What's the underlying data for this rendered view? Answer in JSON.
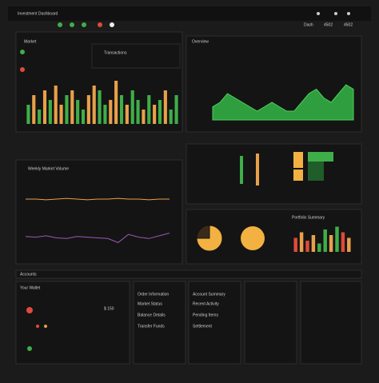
{
  "header": {
    "title": "Investment Dashboard",
    "tabs": [
      "Dash",
      "4502",
      "4502"
    ]
  },
  "panels": {
    "market": "Market",
    "transactions": "Transactions",
    "volume": "Weekly Market Volume",
    "overview": "Overview",
    "portfolio": "Portfolio Summary",
    "accounts": "Accounts",
    "wallet": "Your Wallet",
    "balance": "$ 150",
    "orders": [
      "Order Information",
      "Market Status",
      "Balance Details",
      "Transfer Funds"
    ],
    "activity": [
      "Account Summary",
      "Recent Activity",
      "Pending Items",
      "Settlement"
    ]
  },
  "chart_data": [
    {
      "type": "bar",
      "ylim": [
        0,
        10
      ],
      "values": [
        4,
        6,
        3,
        7,
        5,
        8,
        4,
        6,
        7,
        5,
        3,
        6,
        8,
        7,
        4,
        5,
        9,
        6,
        4,
        7,
        5,
        3,
        6,
        4,
        5,
        7,
        3,
        6
      ],
      "colors": [
        "#3fae49",
        "#e8a04a",
        "#3fae49",
        "#e8a04a",
        "#3fae49",
        "#e8a04a",
        "#e8a04a",
        "#3fae49",
        "#e8a04a",
        "#3fae49",
        "#3fae49",
        "#e8a04a",
        "#e8a04a",
        "#3fae49",
        "#3fae49",
        "#e8a04a",
        "#e8a04a",
        "#3fae49",
        "#e8a04a",
        "#3fae49",
        "#3fae49",
        "#e8a04a",
        "#3fae49",
        "#e8a04a",
        "#3fae49",
        "#e8a04a",
        "#3fae49",
        "#3fae49"
      ]
    },
    {
      "type": "area",
      "ylim": [
        0,
        10
      ],
      "color": "#2e9e3e",
      "values": [
        3,
        4,
        6,
        5,
        4,
        3,
        2,
        3,
        4,
        3,
        2,
        2,
        4,
        6,
        7,
        5,
        4,
        6,
        8,
        7
      ]
    },
    {
      "type": "line",
      "ylim": [
        0,
        10
      ],
      "series": [
        {
          "color": "#e8a04a",
          "values": [
            8,
            8,
            7.9,
            8,
            8.1,
            8,
            7.9,
            8,
            8,
            8.1,
            8,
            8,
            7.9,
            8,
            8
          ]
        },
        {
          "color": "#9b59b6",
          "values": [
            2.5,
            2.4,
            2.6,
            2.3,
            2.2,
            2.5,
            2.4,
            2.3,
            2.2,
            1.6,
            2.8,
            2.4,
            2.2,
            2.6,
            3
          ]
        }
      ]
    },
    {
      "type": "bar",
      "ylim": [
        0,
        10
      ],
      "values": [
        5,
        7,
        4,
        6,
        3,
        8,
        6,
        9,
        7,
        5
      ],
      "colors": [
        "#e04a3a",
        "#e8a04a",
        "#e04a3a",
        "#e8a04a",
        "#3fae49",
        "#3fae49",
        "#e8a04a",
        "#3fae49",
        "#e04a3a",
        "#e8a04a"
      ]
    },
    {
      "type": "pie",
      "values": [
        75,
        25
      ],
      "colors": [
        "#f2b140",
        "#3a2a1a"
      ]
    }
  ]
}
